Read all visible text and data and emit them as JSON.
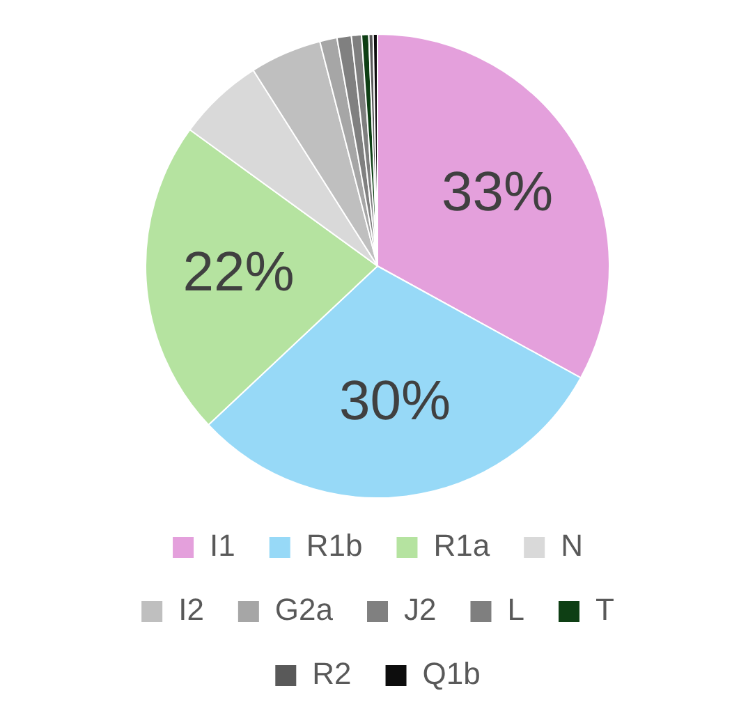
{
  "chart_data": {
    "type": "pie",
    "categories": [
      "I1",
      "R1b",
      "R1a",
      "N",
      "I2",
      "G2a",
      "J2",
      "L",
      "T",
      "R2",
      "Q1b"
    ],
    "values": [
      33,
      30,
      22,
      6,
      5,
      1.2,
      1,
      0.7,
      0.5,
      0.3,
      0.3
    ],
    "colors": [
      "#e4a0dc",
      "#97d9f7",
      "#b5e3a0",
      "#d9d9d9",
      "#bfbfbf",
      "#a6a6a6",
      "#808080",
      "#7f7f7f",
      "#0e3f14",
      "#595959",
      "#0d0d0d"
    ],
    "value_labels": [
      "33%",
      "30%",
      "22%",
      null,
      null,
      null,
      null,
      null,
      null,
      null,
      null
    ],
    "legend": "bottom"
  }
}
